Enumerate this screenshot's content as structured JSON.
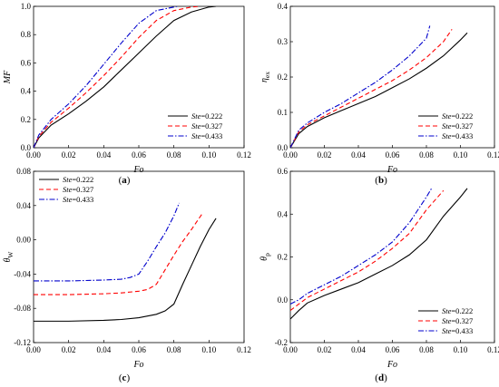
{
  "chart_data": [
    {
      "type": "line",
      "panel_label": "(a)",
      "xlabel": "Fo",
      "ylabel": "MF",
      "xlim": [
        0.0,
        0.12
      ],
      "ylim": [
        0.0,
        1.0
      ],
      "xticks": [
        "0.00",
        "0.02",
        "0.04",
        "0.06",
        "0.08",
        "0.10",
        "0.12"
      ],
      "yticks": [
        "0.0",
        "0.2",
        "0.4",
        "0.6",
        "0.8",
        "1.0"
      ],
      "legend_position": "bottom-right",
      "series": [
        {
          "name_prefix": "Ste",
          "name_value": "=0.222",
          "color": "#000000",
          "dash": "solid",
          "x": [
            0,
            0.003,
            0.01,
            0.02,
            0.03,
            0.04,
            0.05,
            0.06,
            0.07,
            0.08,
            0.09,
            0.1,
            0.104
          ],
          "y": [
            0,
            0.07,
            0.16,
            0.24,
            0.33,
            0.43,
            0.55,
            0.67,
            0.79,
            0.9,
            0.96,
            0.995,
            1.0
          ]
        },
        {
          "name_prefix": "Ste",
          "name_value": "=0.327",
          "color": "#ff0000",
          "dash": "dashed",
          "x": [
            0,
            0.003,
            0.01,
            0.02,
            0.03,
            0.04,
            0.05,
            0.06,
            0.07,
            0.08,
            0.09,
            0.095
          ],
          "y": [
            0,
            0.08,
            0.18,
            0.28,
            0.39,
            0.51,
            0.64,
            0.78,
            0.9,
            0.97,
            0.995,
            1.0
          ]
        },
        {
          "name_prefix": "Ste",
          "name_value": "=0.433",
          "color": "#0000cc",
          "dash": "dashdot",
          "x": [
            0,
            0.003,
            0.01,
            0.02,
            0.03,
            0.04,
            0.05,
            0.06,
            0.07,
            0.08,
            0.082
          ],
          "y": [
            0,
            0.09,
            0.2,
            0.31,
            0.44,
            0.59,
            0.74,
            0.88,
            0.97,
            0.995,
            1.0
          ]
        }
      ]
    },
    {
      "type": "line",
      "panel_label": "(b)",
      "xlabel": "Fo",
      "ylabel": "ηex",
      "ylabel_main": "η",
      "ylabel_sub": "ex",
      "xlim": [
        0.0,
        0.12
      ],
      "ylim": [
        0.0,
        0.4
      ],
      "xticks": [
        "0.00",
        "0.02",
        "0.04",
        "0.06",
        "0.08",
        "0.10",
        "0.12"
      ],
      "yticks": [
        "0.0",
        "0.1",
        "0.2",
        "0.3",
        "0.4"
      ],
      "legend_position": "bottom-right",
      "series": [
        {
          "name_prefix": "Ste",
          "name_value": "=0.222",
          "color": "#000000",
          "dash": "solid",
          "x": [
            0,
            0.005,
            0.01,
            0.02,
            0.03,
            0.04,
            0.05,
            0.06,
            0.07,
            0.08,
            0.09,
            0.1,
            0.104
          ],
          "y": [
            0,
            0.04,
            0.06,
            0.085,
            0.105,
            0.125,
            0.145,
            0.17,
            0.195,
            0.225,
            0.26,
            0.305,
            0.325
          ]
        },
        {
          "name_prefix": "Ste",
          "name_value": "=0.327",
          "color": "#ff0000",
          "dash": "dashed",
          "x": [
            0,
            0.005,
            0.01,
            0.02,
            0.03,
            0.04,
            0.05,
            0.06,
            0.07,
            0.08,
            0.09,
            0.095
          ],
          "y": [
            0,
            0.045,
            0.065,
            0.09,
            0.115,
            0.14,
            0.165,
            0.19,
            0.22,
            0.255,
            0.3,
            0.335
          ]
        },
        {
          "name_prefix": "Ste",
          "name_value": "=0.433",
          "color": "#0000cc",
          "dash": "dashdot",
          "x": [
            0,
            0.005,
            0.01,
            0.02,
            0.03,
            0.04,
            0.05,
            0.06,
            0.07,
            0.08,
            0.082
          ],
          "y": [
            0,
            0.05,
            0.07,
            0.1,
            0.125,
            0.155,
            0.185,
            0.22,
            0.26,
            0.31,
            0.345
          ]
        }
      ]
    },
    {
      "type": "line",
      "panel_label": "(c)",
      "xlabel": "Fo",
      "ylabel": "θW",
      "ylabel_main": "θ",
      "ylabel_sub": "W",
      "xlim": [
        0.0,
        0.12
      ],
      "ylim": [
        -0.12,
        0.08
      ],
      "xticks": [
        "0.00",
        "0.02",
        "0.04",
        "0.06",
        "0.08",
        "0.10",
        "0.12"
      ],
      "yticks": [
        "-0.12",
        "-0.08",
        "-0.04",
        "0.00",
        "0.04",
        "0.08"
      ],
      "legend_position": "top-left",
      "series": [
        {
          "name_prefix": "Ste",
          "name_value": "=0.222",
          "color": "#000000",
          "dash": "solid",
          "x": [
            0,
            0.02,
            0.04,
            0.05,
            0.06,
            0.07,
            0.075,
            0.08,
            0.085,
            0.09,
            0.095,
            0.1,
            0.104
          ],
          "y": [
            -0.095,
            -0.095,
            -0.094,
            -0.093,
            -0.091,
            -0.087,
            -0.083,
            -0.075,
            -0.052,
            -0.03,
            -0.008,
            0.012,
            0.025
          ]
        },
        {
          "name_prefix": "Ste",
          "name_value": "=0.327",
          "color": "#ff0000",
          "dash": "dashed",
          "x": [
            0,
            0.02,
            0.04,
            0.05,
            0.06,
            0.065,
            0.07,
            0.075,
            0.08,
            0.085,
            0.09,
            0.096
          ],
          "y": [
            -0.064,
            -0.064,
            -0.063,
            -0.062,
            -0.06,
            -0.058,
            -0.052,
            -0.035,
            -0.018,
            -0.002,
            0.012,
            0.03
          ]
        },
        {
          "name_prefix": "Ste",
          "name_value": "=0.433",
          "color": "#0000cc",
          "dash": "dashdot",
          "x": [
            0,
            0.02,
            0.04,
            0.05,
            0.055,
            0.06,
            0.065,
            0.07,
            0.075,
            0.08,
            0.083
          ],
          "y": [
            -0.048,
            -0.048,
            -0.047,
            -0.046,
            -0.044,
            -0.04,
            -0.025,
            -0.008,
            0.008,
            0.028,
            0.043
          ]
        }
      ]
    },
    {
      "type": "line",
      "panel_label": "(d)",
      "xlabel": "Fo",
      "ylabel": "θp",
      "ylabel_main": "θ",
      "ylabel_sub": "p",
      "xlim": [
        0.0,
        0.12
      ],
      "ylim": [
        -0.2,
        0.6
      ],
      "xticks": [
        "0.00",
        "0.02",
        "0.04",
        "0.06",
        "0.08",
        "0.10",
        "0.12"
      ],
      "yticks": [
        "-0.2",
        "0.0",
        "0.2",
        "0.4",
        "0.6"
      ],
      "legend_position": "bottom-right",
      "series": [
        {
          "name_prefix": "Ste",
          "name_value": "=0.222",
          "color": "#000000",
          "dash": "solid",
          "x": [
            0,
            0.005,
            0.01,
            0.02,
            0.03,
            0.04,
            0.05,
            0.06,
            0.07,
            0.08,
            0.09,
            0.1,
            0.104
          ],
          "y": [
            -0.09,
            -0.05,
            -0.015,
            0.02,
            0.05,
            0.08,
            0.12,
            0.16,
            0.21,
            0.28,
            0.39,
            0.48,
            0.52
          ]
        },
        {
          "name_prefix": "Ste",
          "name_value": "=0.327",
          "color": "#ff0000",
          "dash": "dashed",
          "x": [
            0,
            0.005,
            0.01,
            0.02,
            0.03,
            0.04,
            0.05,
            0.06,
            0.07,
            0.08,
            0.09
          ],
          "y": [
            -0.05,
            -0.02,
            0.01,
            0.05,
            0.09,
            0.13,
            0.18,
            0.24,
            0.31,
            0.42,
            0.51
          ]
        },
        {
          "name_prefix": "Ste",
          "name_value": "=0.433",
          "color": "#0000cc",
          "dash": "dashdot",
          "x": [
            0,
            0.005,
            0.01,
            0.02,
            0.03,
            0.04,
            0.05,
            0.06,
            0.07,
            0.08,
            0.083
          ],
          "y": [
            -0.02,
            0.0,
            0.03,
            0.07,
            0.11,
            0.16,
            0.21,
            0.27,
            0.36,
            0.48,
            0.52
          ]
        }
      ]
    }
  ]
}
